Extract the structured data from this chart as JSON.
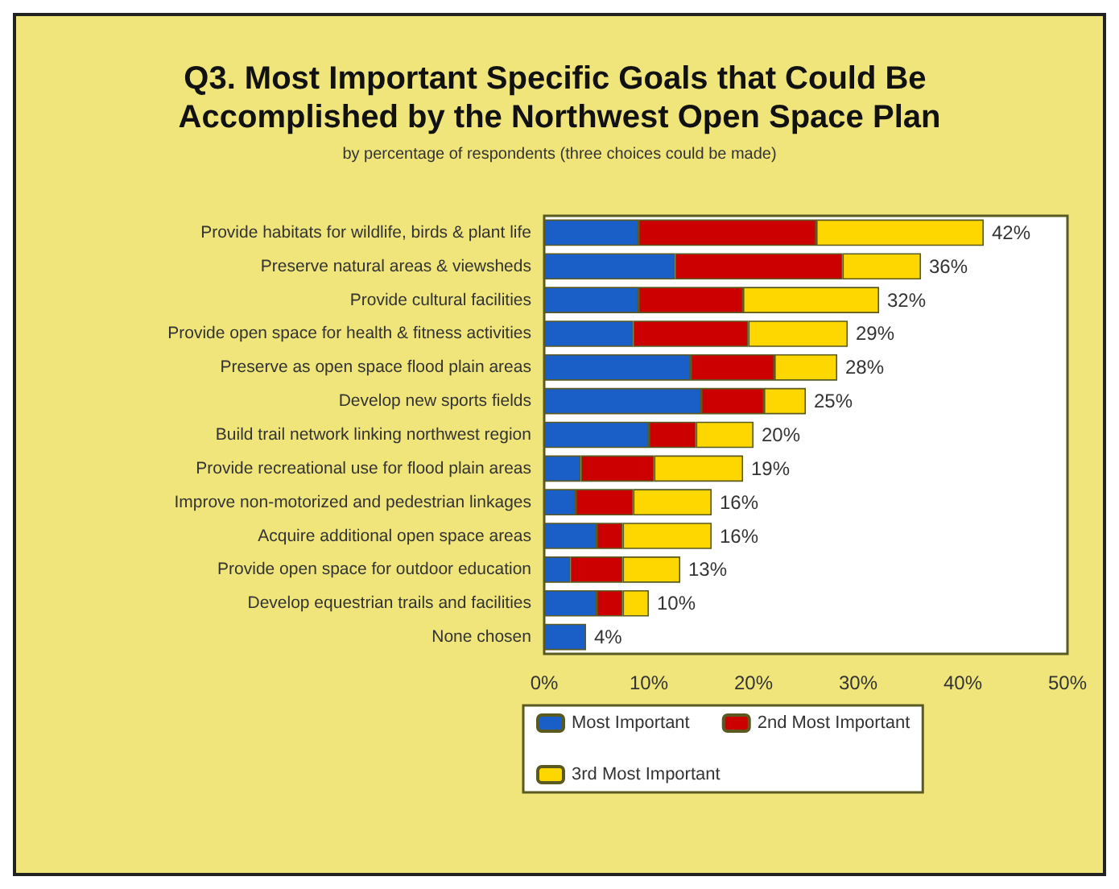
{
  "chart_data": {
    "type": "bar",
    "orientation": "horizontal",
    "stacked": true,
    "title": "Q3. Most Important Specific Goals that Could Be Accomplished by the Northwest Open Space Plan",
    "subtitle": "by percentage of respondents (three choices could be made)",
    "categories": [
      "Provide habitats for wildlife, birds & plant life",
      "Preserve natural areas & viewsheds",
      "Provide cultural facilities",
      "Provide open space for health & fitness activities",
      "Preserve as open space flood plain areas",
      "Develop new sports fields",
      "Build trail network linking northwest region",
      "Provide recreational use for flood plain areas",
      "Improve non-motorized and pedestrian linkages",
      "Acquire additional open space areas",
      "Provide open space for outdoor education",
      "Develop equestrian trails and facilities",
      "None chosen"
    ],
    "series": [
      {
        "name": "Most Important",
        "color": "#1a5fc8",
        "values": [
          9,
          12.5,
          9,
          8.5,
          14,
          15,
          10,
          3.5,
          3,
          5,
          2.5,
          5,
          4
        ]
      },
      {
        "name": "2nd Most Important",
        "color": "#cc0000",
        "values": [
          17,
          16,
          10,
          11,
          8,
          6,
          4.5,
          7,
          5.5,
          2.5,
          5,
          2.5,
          0
        ]
      },
      {
        "name": "3rd Most Important",
        "color": "#ffd700",
        "values": [
          16,
          7.5,
          13,
          9.5,
          6,
          4,
          5.5,
          8.5,
          7.5,
          8.5,
          5.5,
          2.5,
          0
        ]
      }
    ],
    "totals": [
      "42%",
      "36%",
      "32%",
      "29%",
      "28%",
      "25%",
      "20%",
      "19%",
      "16%",
      "16%",
      "13%",
      "10%",
      "4%"
    ],
    "xlim": [
      0,
      50
    ],
    "xticks": [
      {
        "value": 0,
        "label": "0%"
      },
      {
        "value": 10,
        "label": "10%"
      },
      {
        "value": 20,
        "label": "20%"
      },
      {
        "value": 30,
        "label": "30%"
      },
      {
        "value": 40,
        "label": "40%"
      },
      {
        "value": 50,
        "label": "50%"
      }
    ],
    "grid": false,
    "legend": "bottom"
  }
}
